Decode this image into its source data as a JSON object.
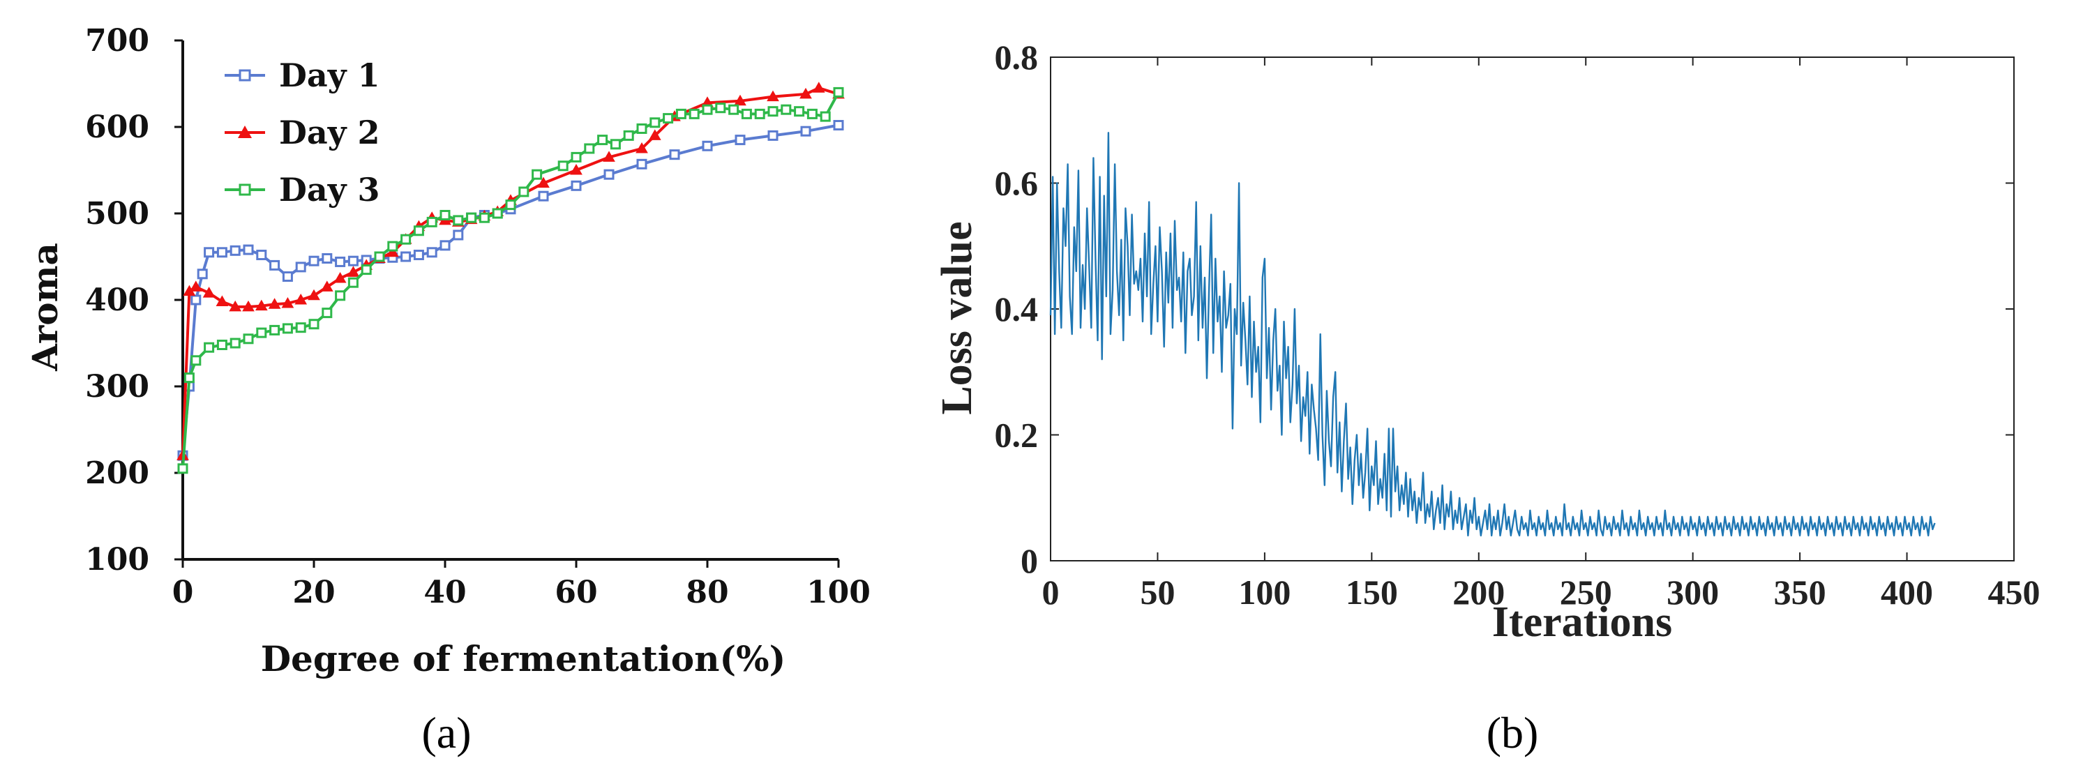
{
  "colors": {
    "day1": "#5a7bd0",
    "day2": "#ee1111",
    "day3": "#2fb84a",
    "loss": "#1f77b4",
    "axis": "#111111"
  },
  "captions": {
    "a": "(a)",
    "b": "(b)"
  },
  "chart_data": [
    {
      "id": "a",
      "type": "line",
      "title": "",
      "xlabel": "Degree of fermentation(%)",
      "ylabel": "Aroma",
      "xlim": [
        0,
        100
      ],
      "ylim": [
        100,
        700
      ],
      "xticks": [
        0,
        20,
        40,
        60,
        80,
        100
      ],
      "yticks": [
        100,
        200,
        300,
        400,
        500,
        600,
        700
      ],
      "legend": "top-left",
      "series": [
        {
          "name": "Day 1",
          "marker": "square",
          "x": [
            0,
            1,
            2,
            3,
            4,
            6,
            8,
            10,
            12,
            14,
            16,
            18,
            20,
            22,
            24,
            26,
            28,
            30,
            32,
            34,
            36,
            38,
            40,
            42,
            44,
            46,
            48,
            50,
            55,
            60,
            65,
            70,
            75,
            80,
            85,
            90,
            95,
            100
          ],
          "y": [
            220,
            300,
            400,
            430,
            455,
            455,
            457,
            458,
            452,
            440,
            427,
            438,
            445,
            448,
            444,
            445,
            446,
            448,
            449,
            450,
            452,
            455,
            463,
            475,
            495,
            498,
            500,
            505,
            520,
            532,
            545,
            557,
            568,
            578,
            585,
            590,
            595,
            602
          ]
        },
        {
          "name": "Day 2",
          "marker": "triangle",
          "x": [
            0,
            1,
            2,
            4,
            6,
            8,
            10,
            12,
            14,
            16,
            18,
            20,
            22,
            24,
            26,
            28,
            30,
            32,
            34,
            36,
            38,
            40,
            42,
            44,
            46,
            48,
            50,
            55,
            60,
            65,
            70,
            72,
            75,
            80,
            85,
            90,
            95,
            97,
            100
          ],
          "y": [
            220,
            410,
            415,
            408,
            398,
            392,
            392,
            393,
            395,
            396,
            400,
            405,
            415,
            425,
            432,
            440,
            448,
            455,
            470,
            485,
            495,
            492,
            490,
            493,
            497,
            502,
            515,
            535,
            550,
            565,
            575,
            590,
            612,
            628,
            630,
            635,
            638,
            645,
            638
          ]
        },
        {
          "name": "Day 3",
          "marker": "square",
          "x": [
            0,
            1,
            2,
            4,
            6,
            8,
            10,
            12,
            14,
            16,
            18,
            20,
            22,
            24,
            26,
            28,
            30,
            32,
            34,
            36,
            38,
            40,
            42,
            44,
            46,
            48,
            50,
            52,
            54,
            58,
            60,
            62,
            64,
            66,
            68,
            70,
            72,
            74,
            76,
            78,
            80,
            82,
            84,
            86,
            88,
            90,
            92,
            94,
            96,
            98,
            100
          ],
          "y": [
            205,
            310,
            330,
            345,
            348,
            350,
            355,
            362,
            365,
            367,
            368,
            372,
            385,
            405,
            420,
            435,
            450,
            462,
            470,
            480,
            490,
            498,
            492,
            495,
            495,
            500,
            510,
            525,
            545,
            555,
            565,
            575,
            585,
            580,
            590,
            598,
            605,
            610,
            615,
            615,
            620,
            622,
            620,
            615,
            615,
            618,
            620,
            618,
            615,
            612,
            640
          ]
        }
      ]
    },
    {
      "id": "b",
      "type": "line",
      "title": "",
      "xlabel": "Iterations",
      "ylabel": "Loss value",
      "xlim": [
        0,
        450
      ],
      "ylim": [
        0,
        0.8
      ],
      "xticks": [
        0,
        50,
        100,
        150,
        200,
        250,
        300,
        350,
        400,
        450
      ],
      "yticks": [
        0,
        0.2,
        0.4,
        0.6,
        0.8
      ],
      "legend": "none",
      "series": [
        {
          "name": "Loss",
          "x_start": 0,
          "x_step": 1,
          "values": [
            0.39,
            0.61,
            0.36,
            0.6,
            0.46,
            0.37,
            0.56,
            0.5,
            0.63,
            0.42,
            0.36,
            0.53,
            0.46,
            0.62,
            0.37,
            0.47,
            0.4,
            0.56,
            0.47,
            0.37,
            0.64,
            0.48,
            0.35,
            0.61,
            0.32,
            0.58,
            0.42,
            0.68,
            0.36,
            0.43,
            0.63,
            0.46,
            0.39,
            0.51,
            0.35,
            0.56,
            0.5,
            0.39,
            0.55,
            0.44,
            0.46,
            0.43,
            0.48,
            0.38,
            0.52,
            0.42,
            0.57,
            0.36,
            0.44,
            0.5,
            0.38,
            0.53,
            0.46,
            0.34,
            0.49,
            0.41,
            0.52,
            0.37,
            0.54,
            0.43,
            0.45,
            0.38,
            0.49,
            0.33,
            0.46,
            0.48,
            0.39,
            0.42,
            0.57,
            0.35,
            0.5,
            0.37,
            0.45,
            0.29,
            0.43,
            0.55,
            0.33,
            0.48,
            0.38,
            0.42,
            0.3,
            0.46,
            0.37,
            0.39,
            0.44,
            0.21,
            0.4,
            0.36,
            0.6,
            0.31,
            0.41,
            0.35,
            0.28,
            0.42,
            0.26,
            0.38,
            0.3,
            0.34,
            0.22,
            0.45,
            0.48,
            0.29,
            0.37,
            0.24,
            0.35,
            0.4,
            0.27,
            0.31,
            0.2,
            0.38,
            0.29,
            0.34,
            0.22,
            0.28,
            0.4,
            0.25,
            0.31,
            0.19,
            0.26,
            0.23,
            0.3,
            0.17,
            0.28,
            0.24,
            0.21,
            0.16,
            0.36,
            0.2,
            0.12,
            0.27,
            0.19,
            0.15,
            0.26,
            0.3,
            0.14,
            0.22,
            0.11,
            0.19,
            0.25,
            0.13,
            0.18,
            0.09,
            0.16,
            0.2,
            0.12,
            0.17,
            0.1,
            0.14,
            0.21,
            0.08,
            0.15,
            0.12,
            0.19,
            0.09,
            0.13,
            0.1,
            0.17,
            0.08,
            0.21,
            0.07,
            0.21,
            0.11,
            0.15,
            0.08,
            0.12,
            0.09,
            0.14,
            0.07,
            0.13,
            0.08,
            0.11,
            0.06,
            0.1,
            0.08,
            0.14,
            0.06,
            0.09,
            0.07,
            0.11,
            0.05,
            0.08,
            0.1,
            0.06,
            0.12,
            0.05,
            0.09,
            0.07,
            0.11,
            0.05,
            0.08,
            0.06,
            0.1,
            0.05,
            0.07,
            0.09,
            0.04,
            0.08,
            0.06,
            0.1,
            0.05,
            0.07,
            0.04,
            0.06,
            0.08,
            0.05,
            0.09,
            0.04,
            0.07,
            0.05,
            0.08,
            0.04,
            0.06,
            0.09,
            0.05,
            0.07,
            0.04,
            0.06,
            0.08,
            0.05,
            0.04,
            0.07,
            0.05,
            0.06,
            0.04,
            0.08,
            0.05,
            0.06,
            0.04,
            0.07,
            0.05,
            0.06,
            0.04,
            0.08,
            0.05,
            0.06,
            0.04,
            0.07,
            0.05,
            0.06,
            0.04,
            0.09,
            0.05,
            0.06,
            0.04,
            0.07,
            0.05,
            0.06,
            0.04,
            0.08,
            0.05,
            0.06,
            0.04,
            0.07,
            0.05,
            0.06,
            0.04,
            0.08,
            0.05,
            0.04,
            0.07,
            0.05,
            0.06,
            0.04,
            0.07,
            0.05,
            0.06,
            0.04,
            0.08,
            0.05,
            0.06,
            0.04,
            0.07,
            0.05,
            0.06,
            0.04,
            0.08,
            0.05,
            0.06,
            0.04,
            0.07,
            0.05,
            0.06,
            0.04,
            0.07,
            0.05,
            0.06,
            0.04,
            0.08,
            0.05,
            0.06,
            0.04,
            0.07,
            0.05,
            0.06,
            0.04,
            0.07,
            0.05,
            0.06,
            0.04,
            0.07,
            0.05,
            0.06,
            0.04,
            0.07,
            0.05,
            0.06,
            0.04,
            0.07,
            0.05,
            0.06,
            0.04,
            0.07,
            0.05,
            0.06,
            0.04,
            0.07,
            0.05,
            0.06,
            0.04,
            0.07,
            0.05,
            0.06,
            0.04,
            0.07,
            0.05,
            0.06,
            0.04,
            0.07,
            0.05,
            0.06,
            0.04,
            0.07,
            0.05,
            0.06,
            0.04,
            0.07,
            0.05,
            0.06,
            0.04,
            0.07,
            0.05,
            0.06,
            0.04,
            0.07,
            0.05,
            0.06,
            0.04,
            0.07,
            0.05,
            0.06,
            0.04,
            0.07,
            0.05,
            0.06,
            0.04,
            0.07,
            0.05,
            0.06,
            0.04,
            0.07,
            0.05,
            0.06,
            0.04,
            0.07,
            0.05,
            0.06,
            0.04,
            0.07,
            0.05,
            0.06,
            0.04,
            0.07,
            0.05,
            0.06,
            0.04,
            0.07,
            0.05,
            0.06,
            0.04,
            0.07,
            0.05,
            0.06,
            0.04,
            0.07,
            0.05,
            0.06,
            0.04,
            0.07,
            0.05,
            0.06,
            0.04,
            0.07,
            0.05,
            0.06,
            0.04,
            0.07,
            0.05,
            0.06,
            0.04,
            0.07,
            0.05,
            0.06,
            0.04,
            0.07,
            0.05,
            0.06,
            0.04,
            0.07,
            0.05,
            0.06,
            0.04,
            0.07,
            0.05,
            0.06
          ]
        }
      ]
    }
  ]
}
